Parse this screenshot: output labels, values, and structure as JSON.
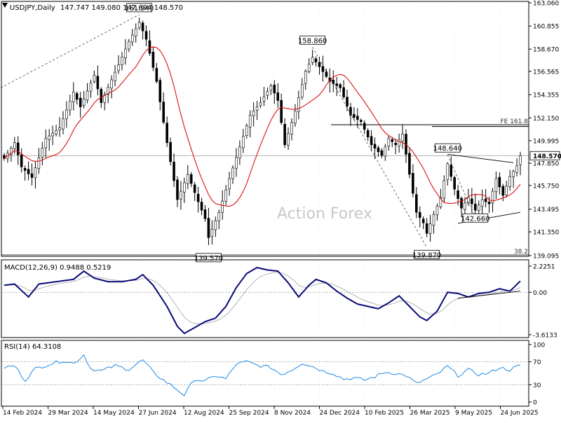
{
  "colors": {
    "candle": "#000000",
    "ma": "#e01010",
    "macd": "#0a0a7a",
    "signal": "#b4b4b4",
    "rsi": "#1e8ce6",
    "grid": "#d8d8d8",
    "ref": "#9a9a9a",
    "dashed": "#444444",
    "trend": "#000000",
    "watermark": "#c8c8c8",
    "price_box_bg": "#ffffff",
    "price_box_border": "#000000"
  },
  "header": {
    "title": "USDJPY,Daily",
    "ohlc": "147.747 149.080 147.694 148.570"
  },
  "watermark": "Action Forex",
  "chart_data": [
    {
      "type": "candlestick",
      "symbol": "USDJPY",
      "timeframe": "Daily",
      "ohlc_last": {
        "open": 147.747,
        "high": 149.08,
        "low": 147.694,
        "close": 148.57
      },
      "ylim": [
        139.095,
        163.06
      ],
      "y_ticks": [
        "163.060",
        "160.855",
        "158.670",
        "156.565",
        "154.355",
        "152.150",
        "149.995",
        "147.850",
        "145.750",
        "143.495",
        "141.350",
        "139.095"
      ],
      "current_price_label": "148.570",
      "current_price": 148.57,
      "x_tick_labels": [
        "14 Feb 2024",
        "29 Mar 2024",
        "14 May 2024",
        "27 Jun 2024",
        "12 Aug 2024",
        "25 Sep 2024",
        "8 Nov 2024",
        "24 Dec 2024",
        "10 Feb 2025",
        "26 Mar 2025",
        "9 May 2025",
        "24 Jun 2025"
      ],
      "swing_labels": [
        {
          "label": "161.940",
          "index": 39,
          "value": 161.94,
          "pos": "above"
        },
        {
          "label": "139.570",
          "index": 59,
          "value": 139.57,
          "pos": "below"
        },
        {
          "label": "158.860",
          "index": 89,
          "value": 158.86,
          "pos": "above"
        },
        {
          "label": "139.870",
          "index": 122,
          "value": 139.87,
          "pos": "below"
        },
        {
          "label": "148.640",
          "index": 128,
          "value": 148.64,
          "pos": "above"
        },
        {
          "label": "142.660",
          "index": 136,
          "value": 142.66,
          "pos": "mid"
        }
      ],
      "fib_level": {
        "label": "FE 161.8",
        "value": 151.5
      },
      "fib_small_label": "38.2",
      "key_points": [
        {
          "i": 0,
          "v": 148.3
        },
        {
          "i": 3,
          "v": 149.8
        },
        {
          "i": 5,
          "v": 147.5
        },
        {
          "i": 8,
          "v": 146.5
        },
        {
          "i": 12,
          "v": 150.2
        },
        {
          "i": 16,
          "v": 151.2
        },
        {
          "i": 20,
          "v": 154.6
        },
        {
          "i": 22,
          "v": 153.2
        },
        {
          "i": 26,
          "v": 156.2
        },
        {
          "i": 28,
          "v": 153.6
        },
        {
          "i": 33,
          "v": 157.2
        },
        {
          "i": 36,
          "v": 159.4
        },
        {
          "i": 39,
          "v": 161.2
        },
        {
          "i": 41,
          "v": 159.6
        },
        {
          "i": 44,
          "v": 155.6
        },
        {
          "i": 47,
          "v": 149.8
        },
        {
          "i": 50,
          "v": 144.4
        },
        {
          "i": 53,
          "v": 146.8
        },
        {
          "i": 56,
          "v": 144.2
        },
        {
          "i": 58,
          "v": 142.6
        },
        {
          "i": 59,
          "v": 140.8
        },
        {
          "i": 62,
          "v": 143.2
        },
        {
          "i": 65,
          "v": 146.4
        },
        {
          "i": 67,
          "v": 148.4
        },
        {
          "i": 71,
          "v": 152.4
        },
        {
          "i": 74,
          "v": 153.6
        },
        {
          "i": 77,
          "v": 155.2
        },
        {
          "i": 79,
          "v": 153.8
        },
        {
          "i": 81,
          "v": 149.6
        },
        {
          "i": 84,
          "v": 152.8
        },
        {
          "i": 87,
          "v": 156.6
        },
        {
          "i": 89,
          "v": 157.9
        },
        {
          "i": 91,
          "v": 157.0
        },
        {
          "i": 94,
          "v": 155.6
        },
        {
          "i": 97,
          "v": 155.0
        },
        {
          "i": 100,
          "v": 152.4
        },
        {
          "i": 103,
          "v": 151.8
        },
        {
          "i": 106,
          "v": 149.6
        },
        {
          "i": 109,
          "v": 148.6
        },
        {
          "i": 111,
          "v": 150.2
        },
        {
          "i": 113,
          "v": 149.6
        },
        {
          "i": 115,
          "v": 150.6
        },
        {
          "i": 117,
          "v": 146.8
        },
        {
          "i": 119,
          "v": 143.2
        },
        {
          "i": 121,
          "v": 142.2
        },
        {
          "i": 122,
          "v": 141.2
        },
        {
          "i": 124,
          "v": 143.0
        },
        {
          "i": 126,
          "v": 144.6
        },
        {
          "i": 128,
          "v": 147.8
        },
        {
          "i": 130,
          "v": 145.4
        },
        {
          "i": 132,
          "v": 143.6
        },
        {
          "i": 134,
          "v": 144.6
        },
        {
          "i": 136,
          "v": 143.4
        },
        {
          "i": 138,
          "v": 144.4
        },
        {
          "i": 140,
          "v": 144.0
        },
        {
          "i": 142,
          "v": 146.4
        },
        {
          "i": 144,
          "v": 144.8
        },
        {
          "i": 146,
          "v": 146.6
        },
        {
          "i": 148,
          "v": 147.6
        },
        {
          "i": 149,
          "v": 148.57
        }
      ]
    },
    {
      "type": "line",
      "title": "MACD(12,26,9) 0.9488 0.5219",
      "ylim": [
        -3.6133,
        2.2251
      ],
      "y_ticks": [
        "2.2251",
        "0.00",
        "-3.6133"
      ],
      "macd_points": [
        {
          "i": 0,
          "v": 0.6
        },
        {
          "i": 3,
          "v": 0.7
        },
        {
          "i": 7,
          "v": -0.4
        },
        {
          "i": 10,
          "v": 0.7
        },
        {
          "i": 15,
          "v": 0.9
        },
        {
          "i": 20,
          "v": 1.1
        },
        {
          "i": 23,
          "v": 1.8
        },
        {
          "i": 26,
          "v": 1.2
        },
        {
          "i": 30,
          "v": 0.9
        },
        {
          "i": 34,
          "v": 0.9
        },
        {
          "i": 38,
          "v": 1.1
        },
        {
          "i": 40,
          "v": 1.5
        },
        {
          "i": 43,
          "v": 0.6
        },
        {
          "i": 47,
          "v": -1.2
        },
        {
          "i": 50,
          "v": -2.9
        },
        {
          "i": 52,
          "v": -3.5
        },
        {
          "i": 55,
          "v": -3.0
        },
        {
          "i": 58,
          "v": -2.5
        },
        {
          "i": 61,
          "v": -2.2
        },
        {
          "i": 64,
          "v": -1.2
        },
        {
          "i": 67,
          "v": 0.4
        },
        {
          "i": 70,
          "v": 1.6
        },
        {
          "i": 73,
          "v": 2.1
        },
        {
          "i": 76,
          "v": 1.9
        },
        {
          "i": 79,
          "v": 1.8
        },
        {
          "i": 82,
          "v": 0.8
        },
        {
          "i": 85,
          "v": -0.4
        },
        {
          "i": 88,
          "v": 0.6
        },
        {
          "i": 90,
          "v": 1.1
        },
        {
          "i": 93,
          "v": 0.8
        },
        {
          "i": 96,
          "v": 0.1
        },
        {
          "i": 99,
          "v": -0.5
        },
        {
          "i": 102,
          "v": -1.0
        },
        {
          "i": 105,
          "v": -1.2
        },
        {
          "i": 108,
          "v": -1.4
        },
        {
          "i": 111,
          "v": -0.9
        },
        {
          "i": 114,
          "v": -0.3
        },
        {
          "i": 117,
          "v": -1.2
        },
        {
          "i": 120,
          "v": -2.1
        },
        {
          "i": 122,
          "v": -2.4
        },
        {
          "i": 125,
          "v": -1.6
        },
        {
          "i": 128,
          "v": 0.0
        },
        {
          "i": 131,
          "v": -0.1
        },
        {
          "i": 134,
          "v": -0.4
        },
        {
          "i": 137,
          "v": -0.1
        },
        {
          "i": 140,
          "v": 0.0
        },
        {
          "i": 143,
          "v": 0.3
        },
        {
          "i": 146,
          "v": 0.1
        },
        {
          "i": 149,
          "v": 0.95
        }
      ],
      "trendline": {
        "i0": 131,
        "v0": -0.5,
        "i1": 149,
        "v1": 0.1
      }
    },
    {
      "type": "line",
      "title": "RSI(14) 64.3108",
      "ylim": [
        0,
        100
      ],
      "y_ticks": [
        "100",
        "70",
        "30",
        "0"
      ],
      "levels": [
        70,
        30
      ],
      "rsi_points": [
        {
          "i": 0,
          "v": 60
        },
        {
          "i": 3,
          "v": 63
        },
        {
          "i": 6,
          "v": 38
        },
        {
          "i": 9,
          "v": 58
        },
        {
          "i": 13,
          "v": 66
        },
        {
          "i": 17,
          "v": 72
        },
        {
          "i": 20,
          "v": 67
        },
        {
          "i": 23,
          "v": 82
        },
        {
          "i": 25,
          "v": 58
        },
        {
          "i": 28,
          "v": 54
        },
        {
          "i": 32,
          "v": 63
        },
        {
          "i": 36,
          "v": 57
        },
        {
          "i": 40,
          "v": 73
        },
        {
          "i": 43,
          "v": 52
        },
        {
          "i": 46,
          "v": 38
        },
        {
          "i": 49,
          "v": 26
        },
        {
          "i": 52,
          "v": 12
        },
        {
          "i": 55,
          "v": 40
        },
        {
          "i": 58,
          "v": 36
        },
        {
          "i": 61,
          "v": 46
        },
        {
          "i": 64,
          "v": 40
        },
        {
          "i": 67,
          "v": 66
        },
        {
          "i": 70,
          "v": 70
        },
        {
          "i": 73,
          "v": 64
        },
        {
          "i": 77,
          "v": 60
        },
        {
          "i": 80,
          "v": 48
        },
        {
          "i": 83,
          "v": 56
        },
        {
          "i": 86,
          "v": 68
        },
        {
          "i": 89,
          "v": 62
        },
        {
          "i": 92,
          "v": 54
        },
        {
          "i": 95,
          "v": 50
        },
        {
          "i": 98,
          "v": 40
        },
        {
          "i": 101,
          "v": 42
        },
        {
          "i": 104,
          "v": 38
        },
        {
          "i": 107,
          "v": 44
        },
        {
          "i": 110,
          "v": 52
        },
        {
          "i": 113,
          "v": 50
        },
        {
          "i": 116,
          "v": 46
        },
        {
          "i": 119,
          "v": 32
        },
        {
          "i": 122,
          "v": 40
        },
        {
          "i": 125,
          "v": 48
        },
        {
          "i": 128,
          "v": 62
        },
        {
          "i": 131,
          "v": 46
        },
        {
          "i": 134,
          "v": 56
        },
        {
          "i": 137,
          "v": 48
        },
        {
          "i": 140,
          "v": 50
        },
        {
          "i": 143,
          "v": 60
        },
        {
          "i": 146,
          "v": 56
        },
        {
          "i": 149,
          "v": 64.31
        }
      ]
    }
  ]
}
